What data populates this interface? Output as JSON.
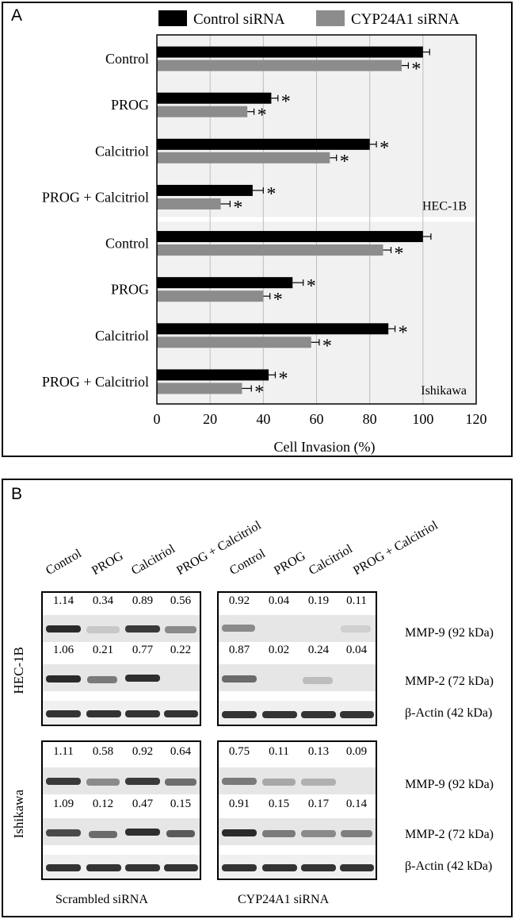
{
  "panel_a": {
    "label": "A",
    "chart_data": {
      "type": "bar",
      "orientation": "horizontal",
      "xlabel": "Cell Invasion (%)",
      "xlim": [
        0,
        120
      ],
      "xticks": [
        "0",
        "20",
        "40",
        "60",
        "80",
        "100",
        "120"
      ],
      "legend": [
        "Control siRNA",
        "CYP24A1 siRNA"
      ],
      "legend_position": "top",
      "colors": [
        "#000000",
        "#8c8c8c"
      ],
      "significance_marker": "*",
      "groups": [
        {
          "cell_line": "HEC-1B",
          "categories": [
            "Control",
            "PROG",
            "Calcitriol",
            "PROG + Calcitriol"
          ],
          "series": [
            {
              "name": "Control siRNA",
              "values": [
                100,
                43,
                80,
                36
              ],
              "errors": [
                2.5,
                2.5,
                2.5,
                4
              ],
              "significant": [
                false,
                true,
                true,
                true
              ]
            },
            {
              "name": "CYP24A1 siRNA",
              "values": [
                92,
                34,
                65,
                24
              ],
              "errors": [
                2.5,
                2.5,
                2.5,
                3.5
              ],
              "significant": [
                true,
                true,
                true,
                true
              ]
            }
          ]
        },
        {
          "cell_line": "Ishikawa",
          "categories": [
            "Control",
            "PROG",
            "Calcitriol",
            "PROG + Calcitriol"
          ],
          "series": [
            {
              "name": "Control siRNA",
              "values": [
                100,
                51,
                87,
                42
              ],
              "errors": [
                3,
                4,
                2.5,
                2.5
              ],
              "significant": [
                false,
                true,
                true,
                true
              ]
            },
            {
              "name": "CYP24A1 siRNA",
              "values": [
                85,
                40,
                58,
                32
              ],
              "errors": [
                3,
                2.5,
                3,
                3.5
              ],
              "significant": [
                true,
                true,
                true,
                true
              ]
            }
          ]
        }
      ]
    }
  },
  "panel_b": {
    "label": "B",
    "lanes": [
      "Control",
      "PROG",
      "Calcitriol",
      "PROG + Calcitriol"
    ],
    "row_labels": {
      "mmp9": "MMP-9 (92 kDa)",
      "mmp2": "MMP-2 (72 kDa)",
      "actin": "β-Actin (42 kDa)"
    },
    "column_titles": {
      "scrambled": "Scrambled siRNA",
      "cyp": "CYP24A1 siRNA"
    },
    "cell_lines": [
      "HEC-1B",
      "Ishikawa"
    ],
    "densitometry": {
      "hec1b_scrambled": {
        "mmp9": [
          "1.14",
          "0.34",
          "0.89",
          "0.56"
        ],
        "mmp2": [
          "1.06",
          "0.21",
          "0.77",
          "0.22"
        ]
      },
      "hec1b_cyp": {
        "mmp9": [
          "0.92",
          "0.04",
          "0.19",
          "0.11"
        ],
        "mmp2": [
          "0.87",
          "0.02",
          "0.24",
          "0.04"
        ]
      },
      "ishikawa_scrambled": {
        "mmp9": [
          "1.11",
          "0.58",
          "0.92",
          "0.64"
        ],
        "mmp2": [
          "1.09",
          "0.12",
          "0.47",
          "0.15"
        ]
      },
      "ishikawa_cyp": {
        "mmp9": [
          "0.75",
          "0.11",
          "0.13",
          "0.09"
        ],
        "mmp2": [
          "0.91",
          "0.15",
          "0.17",
          "0.14"
        ]
      }
    }
  }
}
